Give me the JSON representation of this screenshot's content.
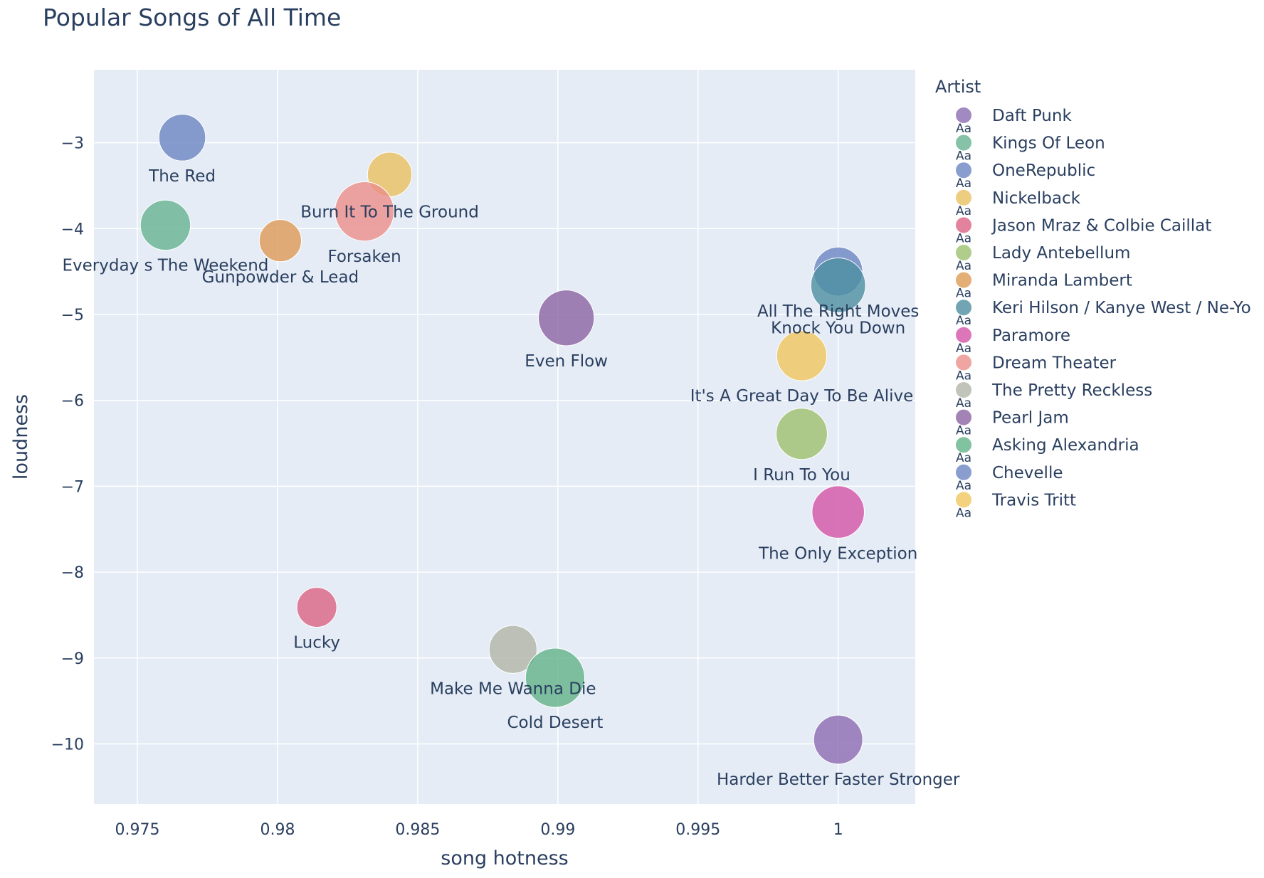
{
  "chart_data": {
    "type": "scatter",
    "title": "Popular Songs of All Time",
    "xlabel": "song hotness",
    "ylabel": "loudness",
    "xlim": [
      0.97345,
      1.00275
    ],
    "ylim": [
      -10.7,
      -2.15
    ],
    "x_ticks": [
      0.975,
      0.98,
      0.985,
      0.99,
      0.995,
      1
    ],
    "x_tick_labels": [
      "0.975",
      "0.98",
      "0.985",
      "0.99",
      "0.995",
      "1"
    ],
    "y_ticks": [
      -3,
      -4,
      -5,
      -6,
      -7,
      -8,
      -9,
      -10
    ],
    "y_tick_labels": [
      "−3",
      "−4",
      "−5",
      "−6",
      "−7",
      "−8",
      "−9",
      "−10"
    ],
    "grid": true,
    "legend": {
      "title": "Artist",
      "placement": "right",
      "marker_text": "Aa"
    },
    "series": [
      {
        "name": "Daft Punk",
        "color": "#8c6bb1",
        "points": [
          {
            "label": "Harder Better Faster Stronger",
            "x": 1.0,
            "y": -9.95,
            "size": 43
          }
        ]
      },
      {
        "name": "Kings Of Leon",
        "color": "#66b391",
        "points": [
          {
            "label": "Everyday s The Weekend",
            "x": 0.976,
            "y": -3.96,
            "size": 44
          }
        ]
      },
      {
        "name": "OneRepublic",
        "color": "#6b86c2",
        "points": [
          {
            "label": "All The Right Moves",
            "x": 1.0,
            "y": -4.5,
            "size": 43
          }
        ]
      },
      {
        "name": "Nickelback",
        "color": "#e8c060",
        "points": [
          {
            "label": "Burn It To The Ground",
            "x": 0.984,
            "y": -3.37,
            "size": 39
          }
        ]
      },
      {
        "name": "Jason Mraz & Colbie Caillat",
        "color": "#db6383",
        "points": [
          {
            "label": "Lucky",
            "x": 0.9814,
            "y": -8.41,
            "size": 35
          }
        ]
      },
      {
        "name": "Lady Antebellum",
        "color": "#9ec16e",
        "points": [
          {
            "label": "I Run To You",
            "x": 0.9987,
            "y": -6.39,
            "size": 45
          }
        ]
      },
      {
        "name": "Miranda Lambert",
        "color": "#dd9a55",
        "points": [
          {
            "label": "Gunpowder & Lead",
            "x": 0.9801,
            "y": -4.14,
            "size": 37
          }
        ]
      },
      {
        "name": "Keri Hilson / Kanye West / Ne-Yo",
        "color": "#4d8ea1",
        "points": [
          {
            "label": "Knock You Down",
            "x": 1.0,
            "y": -4.66,
            "size": 48
          }
        ]
      },
      {
        "name": "Paramore",
        "color": "#d454a6",
        "points": [
          {
            "label": "The Only Exception",
            "x": 1.0,
            "y": -7.3,
            "size": 46
          }
        ]
      },
      {
        "name": "Dream Theater",
        "color": "#eb8f89",
        "points": [
          {
            "label": "Forsaken",
            "x": 0.9831,
            "y": -3.8,
            "size": 52
          }
        ]
      },
      {
        "name": "The Pretty Reckless",
        "color": "#b2b5a8",
        "points": [
          {
            "label": "Make Me Wanna Die",
            "x": 0.9884,
            "y": -8.9,
            "size": 42
          }
        ]
      },
      {
        "name": "Pearl Jam",
        "color": "#8c64a3",
        "points": [
          {
            "label": "Even Flow",
            "x": 0.9903,
            "y": -5.04,
            "size": 49
          }
        ]
      },
      {
        "name": "Asking Alexandria",
        "color": "#62b388",
        "points": [
          {
            "label": "Cold Desert",
            "x": 0.9899,
            "y": -9.23,
            "size": 52
          }
        ]
      },
      {
        "name": "Chevelle",
        "color": "#6b86c2",
        "points": [
          {
            "label": "The Red",
            "x": 0.9766,
            "y": -2.94,
            "size": 41
          }
        ]
      },
      {
        "name": "Travis Tritt",
        "color": "#f0c55e",
        "points": [
          {
            "label": "It's A Great Day To Be Alive",
            "x": 0.9987,
            "y": -5.48,
            "size": 44
          }
        ]
      }
    ]
  }
}
